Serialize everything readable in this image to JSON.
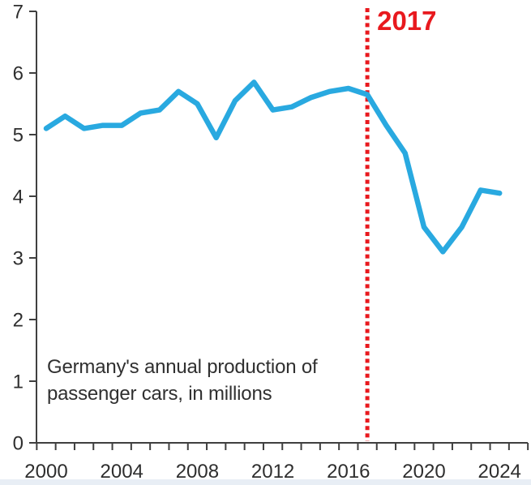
{
  "page": {
    "background": "#ffffff",
    "footer_strip_color": "#e8eef5"
  },
  "chart_data": {
    "type": "line",
    "title": "",
    "xlabel": "",
    "ylabel": "",
    "grid": false,
    "legend": false,
    "xlim": [
      2000,
      2024
    ],
    "ylim": [
      0,
      7
    ],
    "x": [
      2000,
      2001,
      2002,
      2003,
      2004,
      2005,
      2006,
      2007,
      2008,
      2009,
      2010,
      2011,
      2012,
      2013,
      2014,
      2015,
      2016,
      2017,
      2018,
      2019,
      2020,
      2021,
      2022,
      2023,
      2024
    ],
    "series": [
      {
        "name": "Germany passenger car production (millions)",
        "color": "#29a9e0",
        "values": [
          5.1,
          5.3,
          5.1,
          5.15,
          5.15,
          5.35,
          5.4,
          5.7,
          5.5,
          4.95,
          5.55,
          5.85,
          5.4,
          5.45,
          5.6,
          5.7,
          5.75,
          5.65,
          5.15,
          4.7,
          3.5,
          3.1,
          3.5,
          4.1,
          4.05
        ]
      }
    ],
    "y_ticks": [
      0,
      1,
      2,
      3,
      4,
      5,
      6,
      7
    ],
    "x_tick_years": [
      2000,
      2004,
      2008,
      2012,
      2016,
      2020,
      2024
    ],
    "x_tick_labels": [
      "2000",
      "2004",
      "2008",
      "2012",
      "2016",
      "2020",
      "2024"
    ],
    "axis_color": "#3f3f3f",
    "label_color": "#2e2e2e",
    "vline": {
      "year": 2017,
      "label": "2017",
      "color": "#e8191e",
      "style": "dotted"
    },
    "annotation": {
      "line1": "Germany's annual production of",
      "line2": "passenger cars, in millions",
      "color": "#303030"
    }
  }
}
